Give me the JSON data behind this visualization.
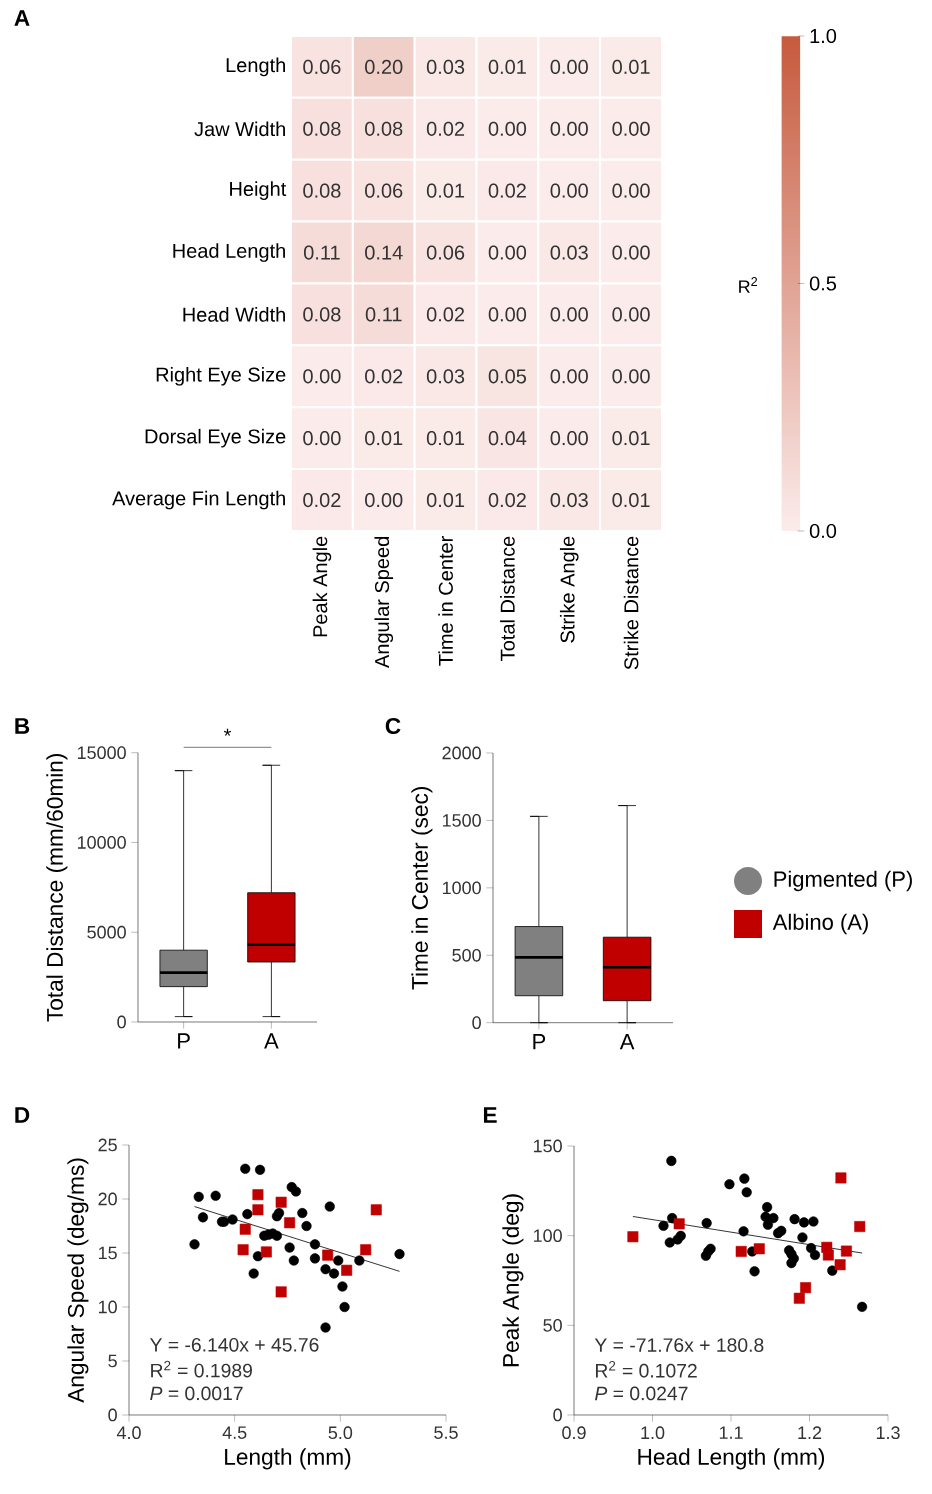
{
  "chart_data": [
    {
      "type": "heatmap",
      "title": "A",
      "clabel": "R$^{2}$",
      "categories": [
        "Peak Angle",
        "Angular Speed",
        "Time in Center",
        "Total Distance",
        "Strike Angle",
        "Strike Distance"
      ],
      "y_categories": [
        "Length",
        "Jaw Width",
        "Height",
        "Head Length",
        "Head Width",
        "Right Eye Size",
        "Dorsal Eye Size",
        "Average Fin Length"
      ],
      "cells": [
        [
          0.06,
          0.2,
          0.03,
          0.01,
          0.0,
          0.01
        ],
        [
          0.08,
          0.08,
          0.02,
          0.0,
          0.0,
          0.0
        ],
        [
          0.08,
          0.06,
          0.01,
          0.02,
          0.0,
          0.0
        ],
        [
          0.11,
          0.14,
          0.06,
          0.0,
          0.03,
          0.0
        ],
        [
          0.08,
          0.11,
          0.02,
          0.0,
          0.0,
          0.0
        ],
        [
          0.0,
          0.02,
          0.03,
          0.05,
          0.0,
          0.0
        ],
        [
          0.0,
          0.01,
          0.01,
          0.04,
          0.0,
          0.01
        ],
        [
          0.02,
          0.0,
          0.01,
          0.02,
          0.03,
          0.01
        ]
      ],
      "cell_labels": [
        [
          "0.06",
          "0.20",
          "0.03",
          "0.01",
          "0.00",
          "0.01"
        ],
        [
          "0.08",
          "0.08",
          "0.02",
          "0.00",
          "0.00",
          "0.00"
        ],
        [
          "0.08",
          "0.06",
          "0.01",
          "0.02",
          "0.00",
          "0.00"
        ],
        [
          "0.11",
          "0.14",
          "0.06",
          "0.00",
          "0.03",
          "0.00"
        ],
        [
          "0.08",
          "0.11",
          "0.02",
          "0.00",
          "0.00",
          "0.00"
        ],
        [
          "0.00",
          "0.02",
          "0.03",
          "0.05",
          "0.00",
          "0.00"
        ],
        [
          "0.00",
          "0.01",
          "0.01",
          "0.04",
          "0.00",
          "0.01"
        ],
        [
          "0.02",
          "0.00",
          "0.01",
          "0.02",
          "0.03",
          "0.01"
        ]
      ],
      "colors": [
        "#fbeceb",
        "#c65a3e"
      ],
      "clim": [
        0,
        1
      ],
      "cticks": [
        {
          "value": 0,
          "label": "0.0"
        },
        {
          "value": 0.5,
          "label": "0.5"
        },
        {
          "value": 1,
          "label": "1.0"
        }
      ]
    },
    {
      "type": "box",
      "title": "B",
      "ylabel": "Total Distance (mm/60min)",
      "categories": [
        "P",
        "A"
      ],
      "ylim": [
        0,
        15000
      ],
      "yticks": [
        0,
        5000,
        10000,
        15000
      ],
      "annotations": [
        "*"
      ],
      "series": [
        {
          "color": "#808080",
          "boxes": [
            {
              "low": 300,
              "q1": 1970,
              "median": 2750,
              "q3": 4000,
              "high": 14000
            },
            null
          ]
        },
        {
          "color": "#c00000",
          "boxes": [
            null,
            {
              "low": 300,
              "q1": 3340,
              "median": 4310,
              "q3": 7200,
              "high": 14300
            }
          ]
        }
      ]
    },
    {
      "type": "box",
      "title": "C",
      "ylabel": "Time in Center (sec)",
      "categories": [
        "P",
        "A"
      ],
      "ylim": [
        0,
        2000
      ],
      "yticks": [
        0,
        500,
        1000,
        1500,
        2000
      ],
      "legend": "right",
      "series": [
        {
          "name": "Pigmented (P)",
          "color": "#808080",
          "marker": "circle",
          "boxes": [
            {
              "low": 0,
              "q1": 200,
              "median": 485,
              "q3": 713,
              "high": 1530
            },
            null
          ]
        },
        {
          "name": "Albino (A)",
          "color": "#c00000",
          "marker": "square",
          "boxes": [
            null,
            {
              "low": 0,
              "q1": 163,
              "median": 411,
              "q3": 634,
              "high": 1610
            }
          ]
        }
      ]
    },
    {
      "type": "scatter",
      "title": "D",
      "xlabel": "Length (mm)",
      "ylabel": "Angular Speed (deg/ms)",
      "xlim": [
        4.0,
        5.5
      ],
      "xticks": [
        {
          "value": 4.0,
          "label": "4.0"
        },
        {
          "value": 4.5,
          "label": "4.5"
        },
        {
          "value": 5.0,
          "label": "5.0"
        },
        {
          "value": 5.5,
          "label": "5.5"
        }
      ],
      "ylim": [
        0,
        25
      ],
      "yticks": [
        0,
        5,
        10,
        15,
        20,
        25
      ],
      "annotations": [
        "Y = -6.140x  + 45.76",
        "R$^{2}$ = 0.1989",
        "*P* = 0.0017"
      ],
      "series": [
        {
          "color": "#000000",
          "marker": "circle",
          "x": [
            4.31,
            4.33,
            4.35,
            4.41,
            4.44,
            4.45,
            4.49,
            4.55,
            4.56,
            4.62,
            4.59,
            4.61,
            4.64,
            4.66,
            4.68,
            4.7,
            4.7,
            4.71,
            4.76,
            4.77,
            4.79,
            4.78,
            4.82,
            4.84,
            4.88,
            4.88,
            4.93,
            4.95,
            4.93,
            4.97,
            4.99,
            5.01,
            5.02,
            5.09,
            5.28
          ],
          "values": [
            15.8,
            20.2,
            18.3,
            20.3,
            17.9,
            17.9,
            18.1,
            22.8,
            18.6,
            22.7,
            13.1,
            14.7,
            16.6,
            16.7,
            16.8,
            18.4,
            16.6,
            18.7,
            15.5,
            21.1,
            20.7,
            14.3,
            18.7,
            17.5,
            15.8,
            14.5,
            13.5,
            19.3,
            8.1,
            13.1,
            14.3,
            11.9,
            10.0,
            14.3,
            14.9
          ]
        },
        {
          "color": "#c00000",
          "marker": "square",
          "x": [
            4.61,
            4.61,
            4.72,
            4.55,
            4.76,
            4.54,
            4.65,
            4.72,
            4.94,
            5.03,
            5.12,
            5.17
          ],
          "values": [
            20.4,
            19.0,
            19.7,
            17.2,
            17.8,
            15.3,
            15.1,
            11.4,
            14.8,
            13.4,
            15.3,
            19.0
          ]
        },
        {
          "type": "line",
          "color": "#000000",
          "x": [
            4.31,
            5.28
          ],
          "values": [
            19.3,
            13.3
          ]
        }
      ]
    },
    {
      "type": "scatter",
      "title": "E",
      "xlabel": "Head Length (mm)",
      "ylabel": "Peak Angle (deg)",
      "xlim": [
        0.9,
        1.3
      ],
      "xticks": [
        {
          "value": 0.9,
          "label": "0.9"
        },
        {
          "value": 1.0,
          "label": "1.0"
        },
        {
          "value": 1.1,
          "label": "1.1"
        },
        {
          "value": 1.2,
          "label": "1.2"
        },
        {
          "value": 1.3,
          "label": "1.3"
        }
      ],
      "ylim": [
        0,
        150
      ],
      "yticks": [
        0,
        50,
        100,
        150
      ],
      "annotations": [
        "Y = -71.76x  + 180.8",
        "R$^{2}$ = 0.1072",
        "*P* = 0.0247"
      ],
      "series": [
        {
          "color": "#000000",
          "marker": "circle",
          "x": [
            1.024,
            1.014,
            1.025,
            1.022,
            1.032,
            1.036,
            1.069,
            1.068,
            1.071,
            1.074,
            1.098,
            1.117,
            1.12,
            1.116,
            1.127,
            1.13,
            1.146,
            1.144,
            1.154,
            1.147,
            1.16,
            1.164,
            1.174,
            1.177,
            1.18,
            1.177,
            1.181,
            1.193,
            1.205,
            1.191,
            1.202,
            1.207,
            1.229,
            1.267
          ],
          "values": [
            141.7,
            105.5,
            109.8,
            96.2,
            97.9,
            99.9,
            107.0,
            88.8,
            91.2,
            92.7,
            128.7,
            131.8,
            124.2,
            102.4,
            91.2,
            80.1,
            115.9,
            110.5,
            109.8,
            106.1,
            101.4,
            102.7,
            91.8,
            89.7,
            87.2,
            84.7,
            109.2,
            107.4,
            107.9,
            99.0,
            93.1,
            89.2,
            80.5,
            60.3
          ]
        },
        {
          "color": "#c00000",
          "marker": "square",
          "x": [
            0.975,
            1.034,
            1.113,
            1.136,
            1.222,
            1.224,
            1.247,
            1.24,
            1.264,
            1.239,
            1.195,
            1.187
          ],
          "values": [
            99.4,
            106.6,
            91.2,
            92.7,
            93.5,
            89.2,
            91.4,
            132.2,
            105.1,
            83.8,
            71.0,
            65.1
          ]
        },
        {
          "type": "line",
          "color": "#000000",
          "x": [
            0.975,
            1.267
          ],
          "values": [
            110.7,
            90.3
          ]
        }
      ]
    }
  ]
}
